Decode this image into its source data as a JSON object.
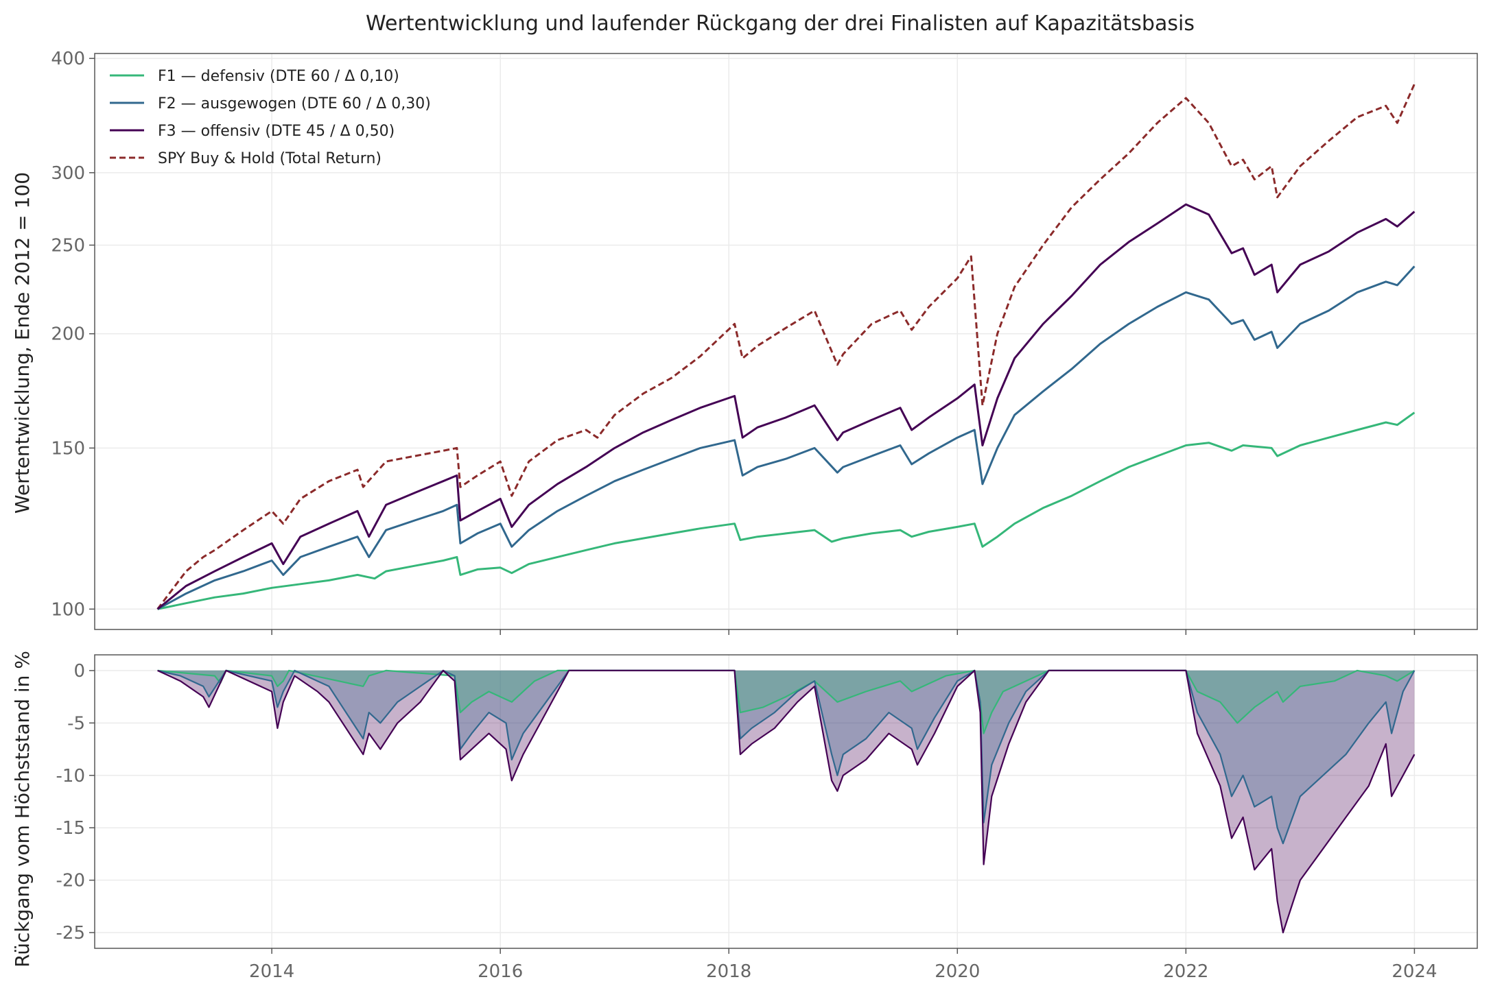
{
  "title": "Wertentwicklung und laufender Rückgang der drei Finalisten auf Kapazitätsbasis",
  "colors": {
    "F1": "#35b779",
    "F2": "#31688e",
    "F3": "#440154",
    "SPY": "#8b2a2a",
    "grid": "#ebebeb",
    "axis": "#555555",
    "tick_text": "#666666"
  },
  "chart_data": [
    {
      "type": "line",
      "panel": "top",
      "title": "Wertentwicklung und laufender Rückgang der drei Finalisten auf Kapazitätsbasis",
      "xlabel": "",
      "ylabel": "Wertentwicklung, Ende 2012 = 100",
      "y_scale": "log",
      "xlim": [
        2012.45,
        2024.55
      ],
      "ylim": [
        95,
        405
      ],
      "yticks": [
        100,
        150,
        200,
        250,
        300,
        400
      ],
      "ytick_labels": [
        "100",
        "150",
        "200",
        "250",
        "300",
        "400"
      ],
      "xticks": [
        2014,
        2016,
        2018,
        2020,
        2022,
        2024
      ],
      "grid": true,
      "legend_position": "top-left",
      "series": [
        {
          "name": "F1 — defensiv (DTE 60 / Δ 0,10)",
          "key": "F1",
          "style": "solid",
          "x": [
            2013.0,
            2013.25,
            2013.5,
            2013.75,
            2014.0,
            2014.25,
            2014.5,
            2014.75,
            2014.9,
            2015.0,
            2015.25,
            2015.5,
            2015.62,
            2015.65,
            2015.8,
            2016.0,
            2016.1,
            2016.25,
            2016.5,
            2016.75,
            2017.0,
            2017.25,
            2017.5,
            2017.75,
            2018.05,
            2018.1,
            2018.25,
            2018.5,
            2018.75,
            2018.9,
            2019.0,
            2019.25,
            2019.5,
            2019.6,
            2019.75,
            2020.0,
            2020.15,
            2020.22,
            2020.35,
            2020.5,
            2020.75,
            2021.0,
            2021.25,
            2021.5,
            2021.75,
            2022.0,
            2022.2,
            2022.4,
            2022.5,
            2022.75,
            2022.8,
            2023.0,
            2023.25,
            2023.5,
            2023.75,
            2023.85,
            2024.0
          ],
          "values": [
            100,
            101.5,
            103,
            104,
            105.5,
            106.5,
            107.5,
            109,
            108,
            110,
            111.5,
            113,
            114,
            109,
            110.5,
            111,
            109.5,
            112,
            114,
            116,
            118,
            119.5,
            121,
            122.5,
            124,
            119,
            120,
            121,
            122,
            118.5,
            119.5,
            121,
            122,
            120,
            121.5,
            123,
            124,
            117,
            120,
            124,
            129,
            133,
            138,
            143,
            147,
            151,
            152,
            149,
            151,
            150,
            147,
            151,
            154,
            157,
            160,
            159,
            164
          ]
        },
        {
          "name": "F2 — ausgewogen (DTE 60 / Δ 0,30)",
          "key": "F2",
          "style": "solid",
          "x": [
            2013.0,
            2013.25,
            2013.5,
            2013.75,
            2014.0,
            2014.1,
            2014.25,
            2014.5,
            2014.75,
            2014.85,
            2015.0,
            2015.25,
            2015.5,
            2015.62,
            2015.65,
            2015.8,
            2016.0,
            2016.1,
            2016.25,
            2016.5,
            2016.75,
            2017.0,
            2017.25,
            2017.5,
            2017.75,
            2018.05,
            2018.12,
            2018.25,
            2018.5,
            2018.75,
            2018.95,
            2019.0,
            2019.25,
            2019.5,
            2019.6,
            2019.75,
            2020.0,
            2020.15,
            2020.22,
            2020.35,
            2020.5,
            2020.75,
            2021.0,
            2021.25,
            2021.5,
            2021.75,
            2022.0,
            2022.2,
            2022.4,
            2022.5,
            2022.6,
            2022.75,
            2022.8,
            2023.0,
            2023.25,
            2023.5,
            2023.75,
            2023.85,
            2024.0
          ],
          "values": [
            100,
            104,
            107.5,
            110,
            113,
            109,
            114,
            117,
            120,
            114,
            122,
            125,
            128,
            130,
            118,
            121,
            124,
            117,
            122,
            128,
            133,
            138,
            142,
            146,
            150,
            153,
            140,
            143,
            146,
            150,
            141,
            143,
            147,
            151,
            144,
            148,
            154,
            157,
            137,
            150,
            163,
            173,
            183,
            195,
            205,
            214,
            222,
            218,
            205,
            207,
            197,
            201,
            193,
            205,
            212,
            222,
            228,
            226,
            237
          ]
        },
        {
          "name": "F3 — offensiv (DTE 45 / Δ 0,50)",
          "key": "F3",
          "style": "solid",
          "x": [
            2013.0,
            2013.25,
            2013.5,
            2013.75,
            2014.0,
            2014.1,
            2014.25,
            2014.5,
            2014.75,
            2014.85,
            2015.0,
            2015.25,
            2015.5,
            2015.62,
            2015.65,
            2015.8,
            2016.0,
            2016.1,
            2016.25,
            2016.5,
            2016.75,
            2017.0,
            2017.25,
            2017.5,
            2017.75,
            2018.05,
            2018.12,
            2018.25,
            2018.5,
            2018.75,
            2018.95,
            2019.0,
            2019.25,
            2019.5,
            2019.6,
            2019.75,
            2020.0,
            2020.15,
            2020.22,
            2020.35,
            2020.5,
            2020.75,
            2021.0,
            2021.25,
            2021.5,
            2021.75,
            2022.0,
            2022.2,
            2022.4,
            2022.5,
            2022.6,
            2022.75,
            2022.8,
            2023.0,
            2023.25,
            2023.5,
            2023.75,
            2023.85,
            2024.0
          ],
          "values": [
            100,
            106,
            110,
            114,
            118,
            112,
            120,
            124,
            128,
            120,
            130,
            134,
            138,
            140,
            125,
            128,
            132,
            123,
            130,
            137,
            143,
            150,
            156,
            161,
            166,
            171,
            154,
            158,
            162,
            167,
            153,
            156,
            161,
            166,
            157,
            162,
            170,
            176,
            151,
            170,
            188,
            205,
            220,
            238,
            252,
            264,
            277,
            270,
            245,
            248,
            232,
            238,
            222,
            238,
            246,
            258,
            267,
            262,
            272
          ]
        },
        {
          "name": "SPY Buy & Hold (Total Return)",
          "key": "SPY",
          "style": "dashed",
          "x": [
            2013.0,
            2013.25,
            2013.4,
            2013.5,
            2013.75,
            2014.0,
            2014.1,
            2014.25,
            2014.5,
            2014.75,
            2014.8,
            2015.0,
            2015.25,
            2015.5,
            2015.62,
            2015.65,
            2015.8,
            2016.0,
            2016.1,
            2016.25,
            2016.5,
            2016.75,
            2016.85,
            2017.0,
            2017.25,
            2017.5,
            2017.75,
            2018.05,
            2018.12,
            2018.25,
            2018.5,
            2018.75,
            2018.95,
            2019.0,
            2019.25,
            2019.5,
            2019.6,
            2019.75,
            2020.0,
            2020.12,
            2020.22,
            2020.35,
            2020.5,
            2020.75,
            2021.0,
            2021.25,
            2021.5,
            2021.75,
            2022.0,
            2022.2,
            2022.4,
            2022.5,
            2022.6,
            2022.75,
            2022.8,
            2023.0,
            2023.25,
            2023.5,
            2023.75,
            2023.85,
            2024.0
          ],
          "values": [
            100,
            110,
            114,
            116,
            122,
            128,
            124,
            132,
            138,
            142,
            136,
            145,
            147,
            149,
            150,
            136,
            140,
            145,
            133,
            145,
            153,
            157,
            154,
            163,
            172,
            179,
            189,
            205,
            188,
            194,
            203,
            212,
            185,
            190,
            205,
            212,
            202,
            214,
            230,
            243,
            167,
            200,
            225,
            250,
            275,
            295,
            315,
            340,
            362,
            340,
            305,
            310,
            295,
            305,
            282,
            305,
            325,
            345,
            355,
            340,
            375
          ]
        }
      ]
    },
    {
      "type": "area",
      "panel": "bottom",
      "xlabel": "",
      "ylabel": "Rückgang vom Höchststand in %",
      "xlim": [
        2012.45,
        2024.55
      ],
      "ylim": [
        -26.5,
        1.5
      ],
      "yticks": [
        0,
        -5,
        -10,
        -15,
        -20,
        -25
      ],
      "ytick_labels": [
        "0",
        "-5",
        "-10",
        "-15",
        "-20",
        "-25"
      ],
      "xticks": [
        2014,
        2016,
        2018,
        2020,
        2022,
        2024
      ],
      "xtick_labels": [
        "2014",
        "2016",
        "2018",
        "2020",
        "2022",
        "2024"
      ],
      "grid": true,
      "series": [
        {
          "key": "F1",
          "x": [
            2013.0,
            2013.5,
            2013.55,
            2013.6,
            2014.0,
            2014.05,
            2014.1,
            2014.15,
            2014.5,
            2014.8,
            2014.85,
            2015.0,
            2015.6,
            2015.65,
            2015.75,
            2015.9,
            2016.1,
            2016.3,
            2016.5,
            2018.05,
            2018.1,
            2018.3,
            2018.5,
            2018.75,
            2018.9,
            2018.95,
            2019.2,
            2019.5,
            2019.6,
            2019.7,
            2019.9,
            2020.15,
            2020.2,
            2020.23,
            2020.3,
            2020.4,
            2020.6,
            2020.8,
            2021.0,
            2021.5,
            2022.0,
            2022.1,
            2022.3,
            2022.45,
            2022.6,
            2022.8,
            2022.85,
            2023.0,
            2023.3,
            2023.5,
            2023.75,
            2023.85,
            2024.0
          ],
          "values": [
            0,
            -0.5,
            -1.2,
            0,
            -0.5,
            -1.5,
            -1.0,
            0,
            -0.8,
            -1.5,
            -0.5,
            0,
            -0.5,
            -4.0,
            -3.0,
            -2.0,
            -3.0,
            -1.0,
            0,
            0,
            -4.0,
            -3.5,
            -2.5,
            -1.0,
            -2.5,
            -3.0,
            -2.0,
            -1.0,
            -2.0,
            -1.5,
            -0.5,
            0,
            -3.0,
            -6.0,
            -4.0,
            -2.0,
            -1.0,
            0,
            0,
            0,
            0,
            -2.0,
            -3.0,
            -5.0,
            -3.5,
            -2.0,
            -3.0,
            -1.5,
            -1.0,
            0,
            -0.5,
            -1.0,
            0
          ]
        },
        {
          "key": "F2",
          "x": [
            2013.0,
            2013.2,
            2013.4,
            2013.45,
            2013.6,
            2014.0,
            2014.05,
            2014.1,
            2014.2,
            2014.4,
            2014.5,
            2014.8,
            2014.85,
            2014.95,
            2015.1,
            2015.3,
            2015.5,
            2015.6,
            2015.65,
            2015.75,
            2015.9,
            2016.05,
            2016.1,
            2016.2,
            2016.4,
            2016.6,
            2017.0,
            2018.05,
            2018.1,
            2018.2,
            2018.4,
            2018.6,
            2018.75,
            2018.9,
            2018.95,
            2019.0,
            2019.2,
            2019.4,
            2019.6,
            2019.65,
            2019.8,
            2020.0,
            2020.15,
            2020.2,
            2020.23,
            2020.3,
            2020.45,
            2020.6,
            2020.8,
            2021.0,
            2021.5,
            2022.0,
            2022.1,
            2022.3,
            2022.4,
            2022.5,
            2022.6,
            2022.75,
            2022.8,
            2022.85,
            2023.0,
            2023.2,
            2023.4,
            2023.6,
            2023.75,
            2023.8,
            2023.9,
            2024.0
          ],
          "values": [
            0,
            -0.5,
            -1.5,
            -2.5,
            0,
            -1.0,
            -3.5,
            -2.0,
            0,
            -1.0,
            -1.5,
            -6.5,
            -4.0,
            -5.0,
            -3.0,
            -1.5,
            0,
            -0.5,
            -7.5,
            -6.0,
            -4.0,
            -5.0,
            -8.5,
            -6.0,
            -3.0,
            0,
            0,
            0,
            -6.5,
            -5.5,
            -4.0,
            -2.0,
            -1.0,
            -8.0,
            -10.0,
            -8.0,
            -6.5,
            -4.0,
            -5.5,
            -7.5,
            -4.5,
            -1.0,
            0,
            -3.0,
            -14.5,
            -9.0,
            -5.0,
            -2.0,
            0,
            0,
            0,
            0,
            -4.0,
            -8.0,
            -12.0,
            -10.0,
            -13.0,
            -12.0,
            -15.0,
            -16.5,
            -12.0,
            -10.0,
            -8.0,
            -5.0,
            -3.0,
            -6.0,
            -2.0,
            0
          ]
        },
        {
          "key": "F3",
          "x": [
            2013.0,
            2013.2,
            2013.4,
            2013.45,
            2013.6,
            2014.0,
            2014.05,
            2014.1,
            2014.2,
            2014.4,
            2014.5,
            2014.8,
            2014.85,
            2014.95,
            2015.1,
            2015.3,
            2015.5,
            2015.6,
            2015.65,
            2015.75,
            2015.9,
            2016.05,
            2016.1,
            2016.2,
            2016.4,
            2016.6,
            2017.0,
            2018.05,
            2018.1,
            2018.2,
            2018.4,
            2018.6,
            2018.75,
            2018.9,
            2018.95,
            2019.0,
            2019.2,
            2019.4,
            2019.6,
            2019.65,
            2019.8,
            2020.0,
            2020.15,
            2020.2,
            2020.23,
            2020.3,
            2020.45,
            2020.6,
            2020.8,
            2021.0,
            2021.5,
            2022.0,
            2022.1,
            2022.3,
            2022.4,
            2022.5,
            2022.6,
            2022.75,
            2022.8,
            2022.85,
            2023.0,
            2023.2,
            2023.4,
            2023.6,
            2023.75,
            2023.8,
            2023.9,
            2024.0
          ],
          "values": [
            0,
            -1.0,
            -2.5,
            -3.5,
            0,
            -2.0,
            -5.5,
            -3.0,
            -0.5,
            -2.0,
            -3.0,
            -8.0,
            -6.0,
            -7.5,
            -5.0,
            -3.0,
            0,
            -1.0,
            -8.5,
            -7.5,
            -6.0,
            -7.5,
            -10.5,
            -8.0,
            -4.0,
            0,
            0,
            0,
            -8.0,
            -7.0,
            -5.5,
            -3.0,
            -1.5,
            -10.5,
            -11.5,
            -10.0,
            -8.5,
            -6.0,
            -7.5,
            -9.0,
            -6.0,
            -1.5,
            0,
            -4.0,
            -18.5,
            -12.0,
            -7.0,
            -3.0,
            0,
            0,
            0,
            0,
            -6.0,
            -11.0,
            -16.0,
            -14.0,
            -19.0,
            -17.0,
            -22.0,
            -25.0,
            -20.0,
            -17.0,
            -14.0,
            -11.0,
            -7.0,
            -12.0,
            -10.0,
            -8.0
          ]
        }
      ]
    }
  ]
}
